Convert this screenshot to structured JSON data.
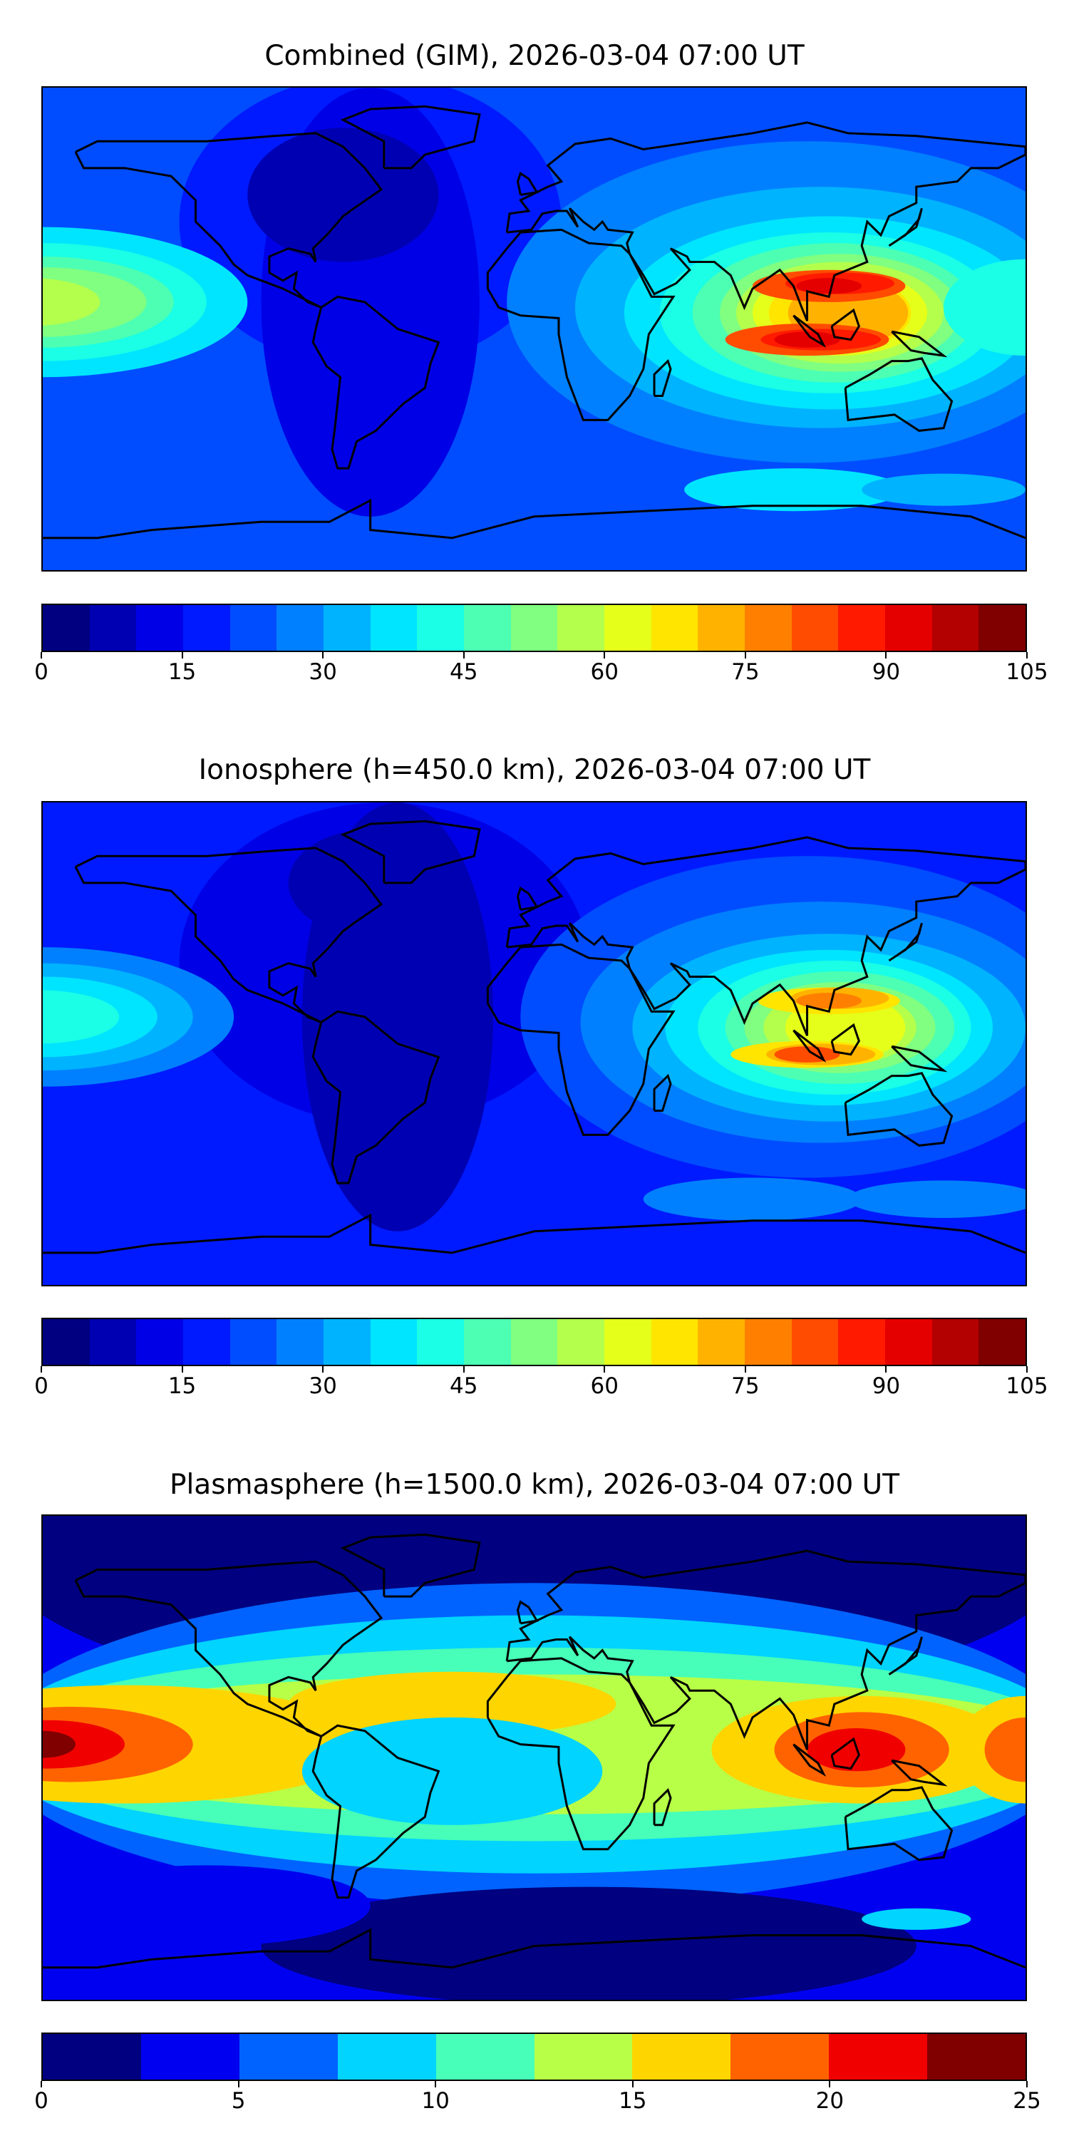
{
  "chart_data": [
    {
      "type": "heatmap",
      "title": "Combined (GIM), 2026-03-04 07:00 UT",
      "colormap": "jet",
      "levels_range": [
        0,
        105
      ],
      "level_step": 5,
      "colorbar_ticks": [
        "0",
        "15",
        "30",
        "45",
        "60",
        "75",
        "90",
        "105"
      ],
      "features": {
        "background_level": 20,
        "max_region": "Southeast Asia, ~95-100",
        "min_region": "Americas/Atlantic, ~5-10",
        "secondary_max": "central Pacific equator, ~55-60"
      }
    },
    {
      "type": "heatmap",
      "title": "Ionosphere  (h=450.0 km), 2026-03-04 07:00 UT",
      "colormap": "jet",
      "levels_range": [
        0,
        105
      ],
      "level_step": 5,
      "colorbar_ticks": [
        "0",
        "15",
        "30",
        "45",
        "60",
        "75",
        "90",
        "105"
      ],
      "features": {
        "background_level": 15,
        "max_region": "Southeast Asia, ~80-85",
        "min_region": "Atlantic, ~0-5",
        "secondary_max": "central Pacific equator, ~40-45"
      }
    },
    {
      "type": "heatmap",
      "title": "Plasmasphere (h=1500.0 km), 2026-03-04 07:00 UT",
      "colormap": "jet",
      "levels_range": [
        0,
        25
      ],
      "level_step": 2.5,
      "colorbar_ticks": [
        "0",
        "5",
        "10",
        "15",
        "20",
        "25"
      ],
      "features": {
        "background_level": 2.5,
        "max_region": "central Pacific equator, ~22.5-25",
        "min_region": "Arctic / Southern Ocean, ~0-2.5"
      }
    }
  ]
}
